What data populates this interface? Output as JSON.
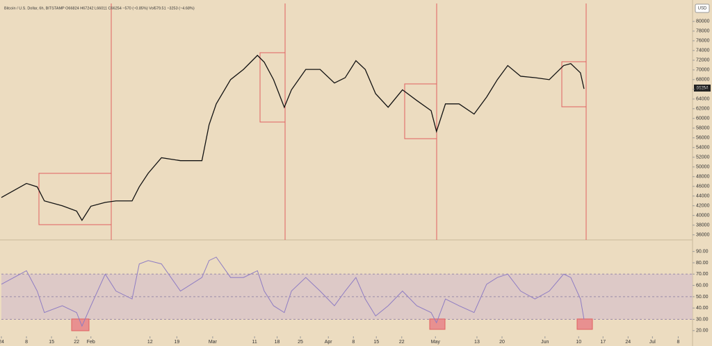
{
  "chart_data": [
    {
      "type": "line",
      "legend_text": "Bitcoin / U.S. Dollar, 6h, BITSTAMP O66824 H67242 L66011 C66254 −570 (−0.85%) Vol579.51 −3253 (−4.68%)",
      "currency": "USD",
      "price_label": "66254",
      "x": [
        0,
        7,
        10,
        12,
        17,
        21,
        22.5,
        25,
        29,
        32,
        36.5,
        38.5,
        41,
        44.7,
        50,
        56,
        58,
        60,
        64,
        67.6,
        71.5,
        73.4,
        76,
        79,
        81,
        85,
        89,
        93,
        96,
        99,
        101.6,
        104.5,
        108,
        112,
        116,
        120,
        121.5,
        124,
        127.8,
        132,
        135.5,
        138.5,
        141.4,
        145,
        149,
        153,
        157,
        159,
        161.7,
        162.7
      ],
      "series": [
        {
          "color": "#111111",
          "values": [
            43700,
            46600,
            45900,
            43000,
            42000,
            40900,
            39000,
            41900,
            42700,
            43000,
            43000,
            45900,
            48700,
            51900,
            51300,
            51300,
            58700,
            63000,
            68000,
            70100,
            73000,
            71600,
            68000,
            62300,
            65900,
            70100,
            70100,
            67300,
            68400,
            71900,
            70100,
            65100,
            62300,
            65900,
            63700,
            61600,
            57300,
            63000,
            63000,
            60900,
            64400,
            68000,
            70900,
            68700,
            68400,
            68000,
            70900,
            71300,
            69400,
            66100
          ]
        }
      ],
      "xlim": [
        0,
        193
      ],
      "ylim": [
        35100,
        83700
      ],
      "yticks": [
        36000,
        38000,
        40000,
        42000,
        44000,
        46000,
        48000,
        50000,
        52000,
        54000,
        56000,
        58000,
        60000,
        62000,
        64000,
        66000,
        68000,
        70000,
        72000,
        74000,
        76000,
        78000,
        80000
      ]
    },
    {
      "type": "line",
      "x": [
        0,
        7,
        10,
        12,
        17,
        21,
        22.5,
        25,
        29,
        32,
        36.5,
        38.5,
        41,
        44.7,
        50,
        56,
        58,
        60,
        64,
        67.6,
        71.5,
        73.4,
        76,
        79,
        81,
        85,
        89,
        93,
        96,
        99,
        101.6,
        104.5,
        108,
        112,
        116,
        120,
        121.5,
        124,
        127.8,
        132,
        135.5,
        138.5,
        141.4,
        145,
        149,
        153,
        157,
        159,
        161.7,
        162.7
      ],
      "series": [
        {
          "color": "#8e7cc3",
          "values": [
            61,
            73,
            55,
            36,
            42,
            36,
            24,
            42,
            70,
            55,
            48,
            79,
            82,
            79,
            55,
            67,
            82,
            85,
            67,
            67,
            73,
            55,
            42,
            36,
            55,
            67,
            55,
            42,
            55,
            67,
            48,
            33,
            42,
            55,
            42,
            36,
            27,
            48,
            42,
            36,
            61,
            67,
            70,
            55,
            48,
            55,
            70,
            67,
            48,
            30
          ]
        }
      ],
      "xlim": [
        0,
        193
      ],
      "ylim": [
        15,
        99
      ],
      "yticks": [
        {
          "value": 20,
          "label": "20.00"
        },
        {
          "value": 30,
          "label": "30.00"
        },
        {
          "value": 40,
          "label": "40.00"
        },
        {
          "value": 50,
          "label": "50.00"
        },
        {
          "value": 60,
          "label": "60.00"
        },
        {
          "value": 70,
          "label": "70.00"
        },
        {
          "value": 80,
          "label": "80.00"
        },
        {
          "value": 90,
          "label": "90.00"
        }
      ],
      "xticks": [
        {
          "value": 0,
          "label": "24"
        },
        {
          "value": 7,
          "label": "8"
        },
        {
          "value": 14,
          "label": "15"
        },
        {
          "value": 21,
          "label": "22"
        },
        {
          "value": 25,
          "label": "Feb"
        },
        {
          "value": 41.5,
          "label": "12"
        },
        {
          "value": 49,
          "label": "19"
        },
        {
          "value": 59,
          "label": "Mar"
        },
        {
          "value": 70.7,
          "label": "11"
        },
        {
          "value": 77,
          "label": "18"
        },
        {
          "value": 83.5,
          "label": "25"
        },
        {
          "value": 91.3,
          "label": "Apr"
        },
        {
          "value": 98.3,
          "label": "8"
        },
        {
          "value": 104.7,
          "label": "15"
        },
        {
          "value": 111.8,
          "label": "22"
        },
        {
          "value": 121.2,
          "label": "May"
        },
        {
          "value": 132.8,
          "label": "13"
        },
        {
          "value": 139.8,
          "label": "20"
        },
        {
          "value": 151.8,
          "label": "Jun"
        },
        {
          "value": 161.2,
          "label": "10"
        },
        {
          "value": 168,
          "label": "17"
        },
        {
          "value": 175,
          "label": "24"
        },
        {
          "value": 181.8,
          "label": "Jul"
        },
        {
          "value": 189,
          "label": "8"
        }
      ]
    }
  ]
}
